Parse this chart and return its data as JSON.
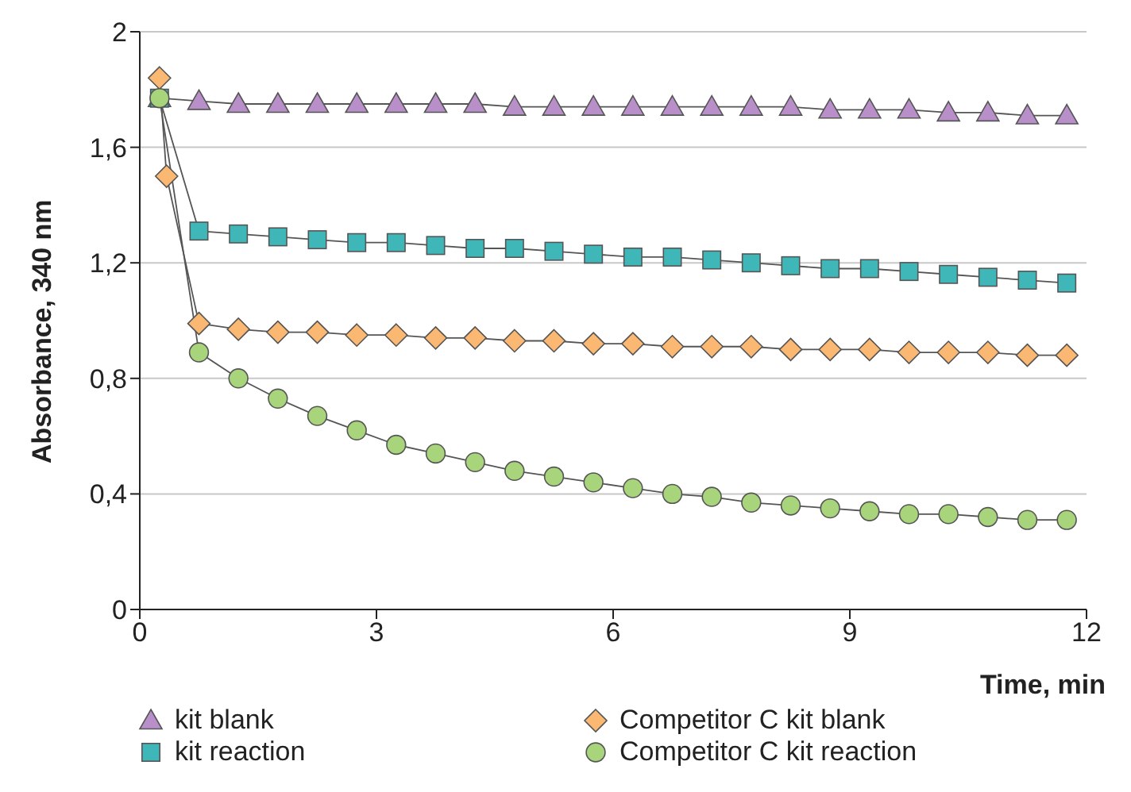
{
  "chart_data": {
    "type": "line",
    "xlabel": "Time, min",
    "ylabel": "Absorbance, 340 nm",
    "xlim": [
      0,
      12
    ],
    "xticks": [
      0,
      3,
      6,
      9,
      12
    ],
    "ylim": [
      0,
      2
    ],
    "yticks": [
      0,
      {
        "value": 0.4,
        "label": "0,4"
      },
      {
        "value": 0.8,
        "label": "0,8"
      },
      {
        "value": 1.2,
        "label": "1,2"
      },
      {
        "value": 1.6,
        "label": "1,6"
      },
      2
    ],
    "grid": "y",
    "legend": "bottom",
    "series": [
      {
        "name": "kit blank",
        "color": "#b98fc9",
        "marker": "triangle",
        "x": [
          0.25,
          0.75,
          1.25,
          1.75,
          2.25,
          2.75,
          3.25,
          3.75,
          4.25,
          4.75,
          5.25,
          5.75,
          6.25,
          6.75,
          7.25,
          7.75,
          8.25,
          8.75,
          9.25,
          9.75,
          10.25,
          10.75,
          11.25,
          11.75
        ],
        "values": [
          1.77,
          1.76,
          1.75,
          1.75,
          1.75,
          1.75,
          1.75,
          1.75,
          1.75,
          1.74,
          1.74,
          1.74,
          1.74,
          1.74,
          1.74,
          1.74,
          1.74,
          1.73,
          1.73,
          1.73,
          1.72,
          1.72,
          1.71,
          1.71
        ]
      },
      {
        "name": "Competitor C kit blank",
        "color": "#fbb872",
        "marker": "diamond",
        "x": [
          0.25,
          0.34,
          0.75,
          1.25,
          1.75,
          2.25,
          2.75,
          3.25,
          3.75,
          4.25,
          4.75,
          5.25,
          5.75,
          6.25,
          6.75,
          7.25,
          7.75,
          8.25,
          8.75,
          9.25,
          9.75,
          10.25,
          10.75,
          11.25,
          11.75
        ],
        "values": [
          1.84,
          1.5,
          0.99,
          0.97,
          0.96,
          0.96,
          0.95,
          0.95,
          0.94,
          0.94,
          0.93,
          0.93,
          0.92,
          0.92,
          0.91,
          0.91,
          0.91,
          0.9,
          0.9,
          0.9,
          0.89,
          0.89,
          0.89,
          0.88,
          0.88
        ]
      },
      {
        "name": "kit reaction",
        "color": "#3fb7b9",
        "marker": "square",
        "x": [
          0.25,
          0.75,
          1.25,
          1.75,
          2.25,
          2.75,
          3.25,
          3.75,
          4.25,
          4.75,
          5.25,
          5.75,
          6.25,
          6.75,
          7.25,
          7.75,
          8.25,
          8.75,
          9.25,
          9.75,
          10.25,
          10.75,
          11.25,
          11.75
        ],
        "values": [
          1.77,
          1.31,
          1.3,
          1.29,
          1.28,
          1.27,
          1.27,
          1.26,
          1.25,
          1.25,
          1.24,
          1.23,
          1.22,
          1.22,
          1.21,
          1.2,
          1.19,
          1.18,
          1.18,
          1.17,
          1.16,
          1.15,
          1.14,
          1.13
        ]
      },
      {
        "name": "Competitor C kit reaction",
        "color": "#a8d47b",
        "marker": "circle",
        "x": [
          0.25,
          0.75,
          1.25,
          1.75,
          2.25,
          2.75,
          3.25,
          3.75,
          4.25,
          4.75,
          5.25,
          5.75,
          6.25,
          6.75,
          7.25,
          7.75,
          8.25,
          8.75,
          9.25,
          9.75,
          10.25,
          10.75,
          11.25,
          11.75
        ],
        "values": [
          1.77,
          0.89,
          0.8,
          0.73,
          0.67,
          0.62,
          0.57,
          0.54,
          0.51,
          0.48,
          0.46,
          0.44,
          0.42,
          0.4,
          0.39,
          0.37,
          0.36,
          0.35,
          0.34,
          0.33,
          0.33,
          0.32,
          0.31,
          0.31
        ]
      }
    ]
  }
}
